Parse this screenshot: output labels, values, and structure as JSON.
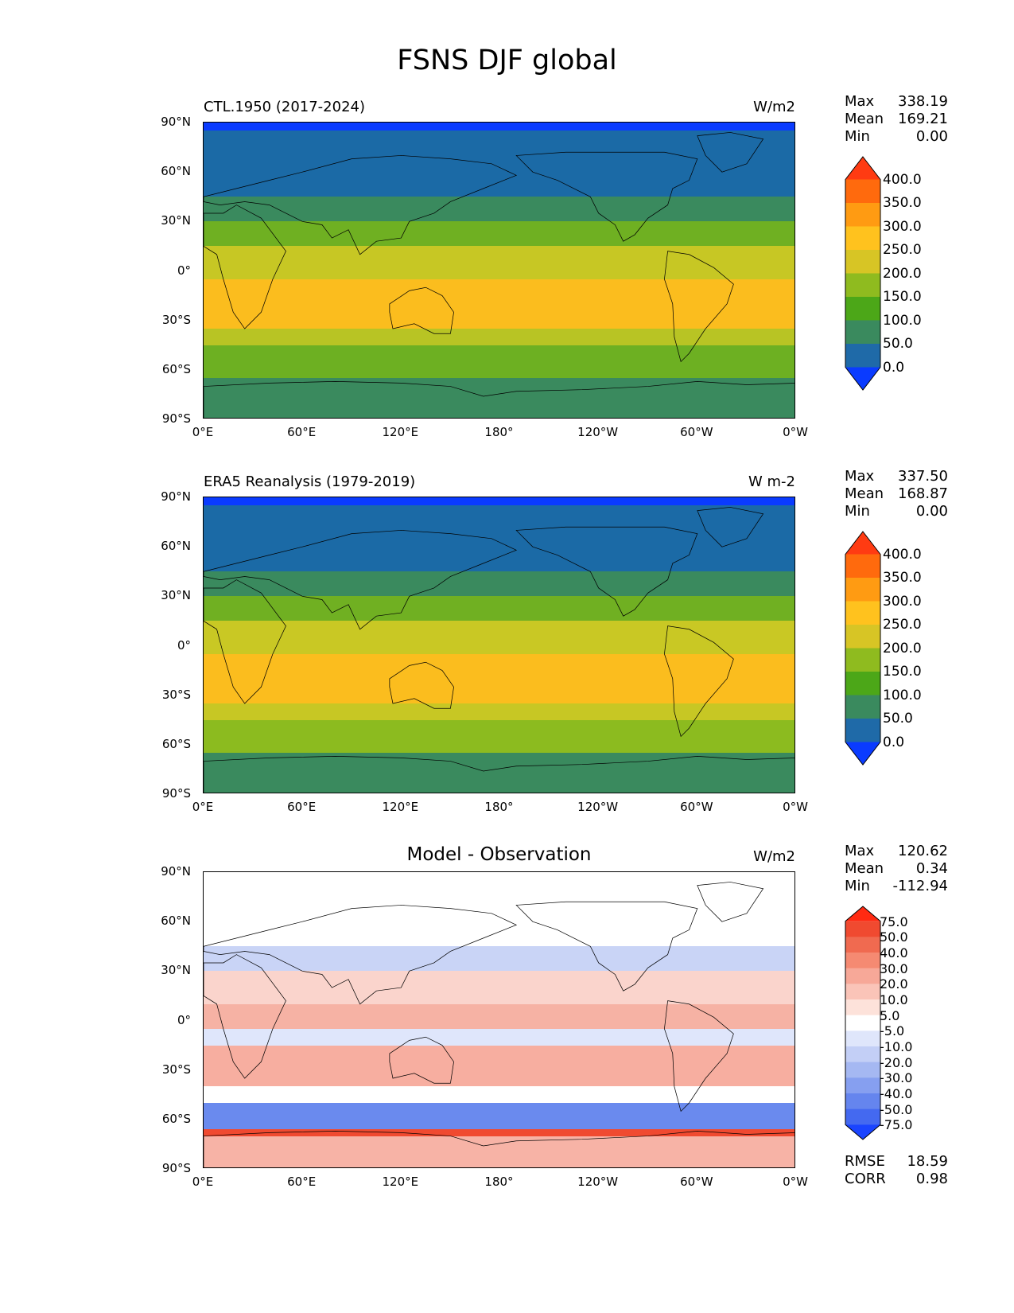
{
  "title": "FSNS DJF global",
  "axes": {
    "yticks": [
      "90°N",
      "60°N",
      "30°N",
      "0°",
      "30°S",
      "60°S",
      "90°S"
    ],
    "xticks": [
      "0°E",
      "60°E",
      "120°E",
      "180°",
      "120°W",
      "60°W",
      "0°W"
    ]
  },
  "panels": [
    {
      "left_title": "CTL.1950 (2017-2024)",
      "center_title": "",
      "units": "W/m2",
      "stats": {
        "max_label": "Max",
        "max": "338.19",
        "mean_label": "Mean",
        "mean": "169.21",
        "min_label": "Min",
        "min": "0.00"
      },
      "colorbar": {
        "levels": [
          "400.0",
          "350.0",
          "300.0",
          "250.0",
          "200.0",
          "150.0",
          "100.0",
          "50.0",
          "0.0"
        ],
        "colors": [
          "#ff3b12",
          "#ff6a0d",
          "#ff9b12",
          "#ffc21e",
          "#d7c525",
          "#8fbb1f",
          "#4ca718",
          "#3a8a5e",
          "#1f6aa8",
          "#0a3bff"
        ]
      },
      "map": {
        "bands": [
          {
            "lat_from": 90,
            "lat_to": 85,
            "color": "#0a3bff"
          },
          {
            "lat_from": 85,
            "lat_to": 45,
            "color": "#1b6aa6"
          },
          {
            "lat_from": 45,
            "lat_to": 30,
            "color": "#3a8a5e"
          },
          {
            "lat_from": 30,
            "lat_to": 15,
            "color": "#6fb022"
          },
          {
            "lat_from": 15,
            "lat_to": -5,
            "color": "#c7c724"
          },
          {
            "lat_from": -5,
            "lat_to": -35,
            "color": "#fbbd1e"
          },
          {
            "lat_from": -35,
            "lat_to": -45,
            "color": "#b8c424"
          },
          {
            "lat_from": -45,
            "lat_to": -65,
            "color": "#6db022"
          },
          {
            "lat_from": -65,
            "lat_to": -90,
            "color": "#3a8a5e"
          }
        ]
      }
    },
    {
      "left_title": "ERA5 Reanalysis (1979-2019)",
      "center_title": "",
      "units": "W m-2",
      "stats": {
        "max_label": "Max",
        "max": "337.50",
        "mean_label": "Mean",
        "mean": "168.87",
        "min_label": "Min",
        "min": "0.00"
      },
      "colorbar": {
        "levels": [
          "400.0",
          "350.0",
          "300.0",
          "250.0",
          "200.0",
          "150.0",
          "100.0",
          "50.0",
          "0.0"
        ],
        "colors": [
          "#ff3b12",
          "#ff6a0d",
          "#ff9b12",
          "#ffc21e",
          "#d7c525",
          "#8fbb1f",
          "#4ca718",
          "#3a8a5e",
          "#1f6aa8",
          "#0a3bff"
        ]
      },
      "map": {
        "bands": [
          {
            "lat_from": 90,
            "lat_to": 85,
            "color": "#0a3bff"
          },
          {
            "lat_from": 85,
            "lat_to": 45,
            "color": "#1b6aa6"
          },
          {
            "lat_from": 45,
            "lat_to": 30,
            "color": "#3a8a5e"
          },
          {
            "lat_from": 30,
            "lat_to": 15,
            "color": "#70b022"
          },
          {
            "lat_from": 15,
            "lat_to": -5,
            "color": "#c9c824"
          },
          {
            "lat_from": -5,
            "lat_to": -35,
            "color": "#fbbd1e"
          },
          {
            "lat_from": -35,
            "lat_to": -45,
            "color": "#c7c724"
          },
          {
            "lat_from": -45,
            "lat_to": -65,
            "color": "#8cbb1f"
          },
          {
            "lat_from": -65,
            "lat_to": -90,
            "color": "#3a8a5e"
          }
        ]
      }
    },
    {
      "left_title": "",
      "center_title": "Model - Observation",
      "units": "W/m2",
      "stats": {
        "max_label": "Max",
        "max": "120.62",
        "mean_label": "Mean",
        "mean": "0.34",
        "min_label": "Min",
        "min": "-112.94"
      },
      "colorbar": {
        "levels": [
          "75.0",
          "50.0",
          "40.0",
          "30.0",
          "20.0",
          "10.0",
          "5.0",
          "-5.0",
          "-10.0",
          "-20.0",
          "-30.0",
          "-40.0",
          "-50.0",
          "-75.0"
        ],
        "colors": [
          "#ff2a12",
          "#f04a30",
          "#f06a50",
          "#f58a72",
          "#f7a898",
          "#fac4b8",
          "#fde2da",
          "#ffffff",
          "#dfe6fb",
          "#c3cff6",
          "#a5b8f2",
          "#869ff0",
          "#6585ee",
          "#4469f0",
          "#1a44ff"
        ]
      },
      "map": {
        "bands": [
          {
            "lat_from": 90,
            "lat_to": 45,
            "color": "#ffffff"
          },
          {
            "lat_from": 45,
            "lat_to": 30,
            "color": "#c9d4f6"
          },
          {
            "lat_from": 30,
            "lat_to": 10,
            "color": "#fad4cc"
          },
          {
            "lat_from": 10,
            "lat_to": -5,
            "color": "#f6b2a4"
          },
          {
            "lat_from": -5,
            "lat_to": -15,
            "color": "#dfe6fb"
          },
          {
            "lat_from": -15,
            "lat_to": -40,
            "color": "#f7aea0"
          },
          {
            "lat_from": -40,
            "lat_to": -50,
            "color": "#ffffff"
          },
          {
            "lat_from": -50,
            "lat_to": -66,
            "color": "#6a8aee"
          },
          {
            "lat_from": -66,
            "lat_to": -70,
            "color": "#f04a30"
          },
          {
            "lat_from": -70,
            "lat_to": -90,
            "color": "#f7b3a6"
          }
        ]
      },
      "extra_stats": {
        "rmse_label": "RMSE",
        "rmse": "18.59",
        "corr_label": "CORR",
        "corr": "0.98"
      }
    }
  ]
}
